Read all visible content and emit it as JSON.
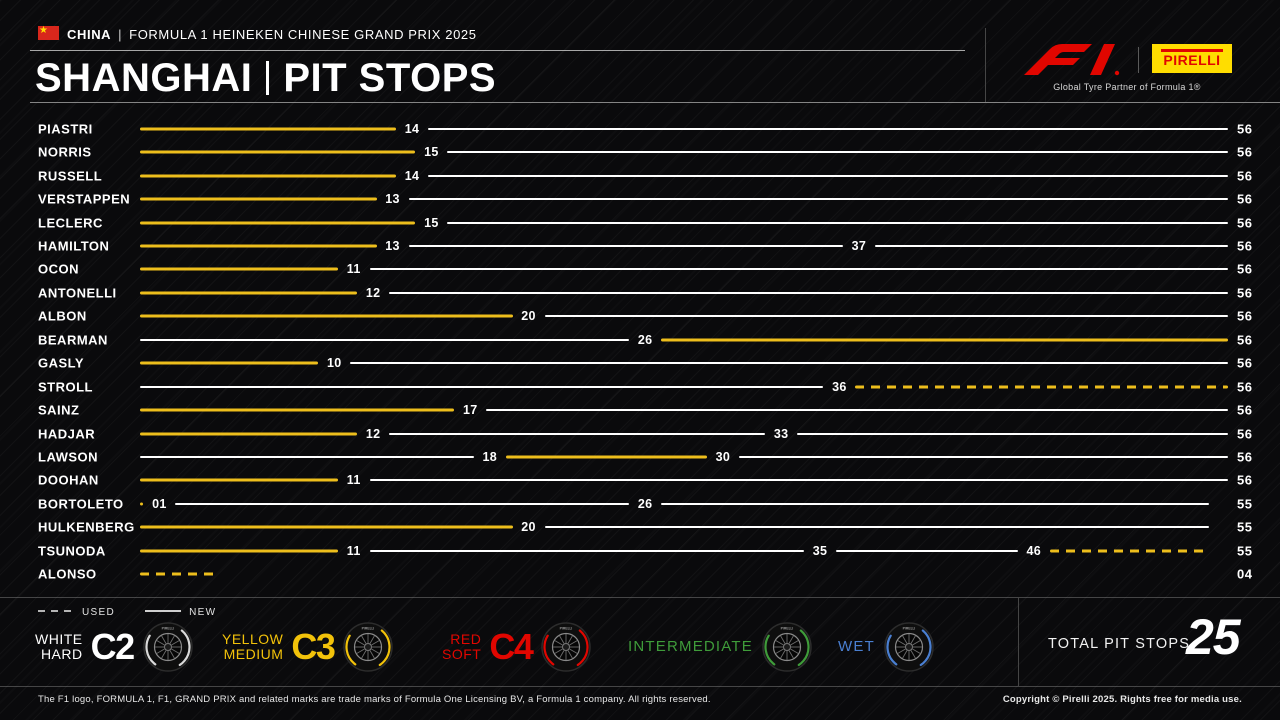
{
  "header": {
    "event_country": "CHINA",
    "event_sep": "|",
    "event_name": "FORMULA 1 HEINEKEN CHINESE GRAND PRIX 2025",
    "title_city": "SHANGHAI",
    "title_label": "PIT STOPS",
    "pirelli_wordmark": "PIRELLI",
    "partner_line": "Global Tyre Partner of Formula 1®"
  },
  "legend": {
    "used_label": "USED",
    "new_label": "NEW",
    "compounds": [
      {
        "name_lines": [
          "WHITE",
          "HARD"
        ],
        "code": "C2",
        "color": "#FFFFFF"
      },
      {
        "name_lines": [
          "YELLOW",
          "MEDIUM"
        ],
        "code": "C3",
        "color": "#F2C20A"
      },
      {
        "name_lines": [
          "RED",
          "SOFT"
        ],
        "code": "C4",
        "color": "#E10600"
      },
      {
        "name_lines": [
          "INTERMEDIATE"
        ],
        "code": "",
        "color": "#3F9C3A"
      },
      {
        "name_lines": [
          "WET"
        ],
        "code": "",
        "color": "#4A7FD1"
      }
    ],
    "total_label": "TOTAL PIT STOPS",
    "total_value": "25"
  },
  "chart_data": {
    "type": "timeline",
    "title": "SHANGHAI | PIT STOPS",
    "total_laps": 56,
    "compound_colors": {
      "medium": "#EDBE1C",
      "hard": "#FFFFFF"
    },
    "line_styles": {
      "used": "dashed",
      "new": "solid"
    },
    "drivers": [
      {
        "name": "PIASTRI",
        "end_label": "56",
        "stints": [
          {
            "from": 0,
            "to": 14,
            "compound": "medium",
            "used": false
          },
          {
            "from": 14,
            "to": 56,
            "compound": "hard",
            "used": false
          }
        ]
      },
      {
        "name": "NORRIS",
        "end_label": "56",
        "stints": [
          {
            "from": 0,
            "to": 15,
            "compound": "medium",
            "used": false
          },
          {
            "from": 15,
            "to": 56,
            "compound": "hard",
            "used": false
          }
        ]
      },
      {
        "name": "RUSSELL",
        "end_label": "56",
        "stints": [
          {
            "from": 0,
            "to": 14,
            "compound": "medium",
            "used": false
          },
          {
            "from": 14,
            "to": 56,
            "compound": "hard",
            "used": false
          }
        ]
      },
      {
        "name": "VERSTAPPEN",
        "end_label": "56",
        "stints": [
          {
            "from": 0,
            "to": 13,
            "compound": "medium",
            "used": false
          },
          {
            "from": 13,
            "to": 56,
            "compound": "hard",
            "used": false
          }
        ]
      },
      {
        "name": "LECLERC",
        "end_label": "56",
        "stints": [
          {
            "from": 0,
            "to": 15,
            "compound": "medium",
            "used": false
          },
          {
            "from": 15,
            "to": 56,
            "compound": "hard",
            "used": false
          }
        ]
      },
      {
        "name": "HAMILTON",
        "end_label": "56",
        "stints": [
          {
            "from": 0,
            "to": 13,
            "compound": "medium",
            "used": false
          },
          {
            "from": 13,
            "to": 37,
            "compound": "hard",
            "used": false
          },
          {
            "from": 37,
            "to": 56,
            "compound": "hard",
            "used": false
          }
        ]
      },
      {
        "name": "OCON",
        "end_label": "56",
        "stints": [
          {
            "from": 0,
            "to": 11,
            "compound": "medium",
            "used": false
          },
          {
            "from": 11,
            "to": 56,
            "compound": "hard",
            "used": false
          }
        ]
      },
      {
        "name": "ANTONELLI",
        "end_label": "56",
        "stints": [
          {
            "from": 0,
            "to": 12,
            "compound": "medium",
            "used": false
          },
          {
            "from": 12,
            "to": 56,
            "compound": "hard",
            "used": false
          }
        ]
      },
      {
        "name": "ALBON",
        "end_label": "56",
        "stints": [
          {
            "from": 0,
            "to": 20,
            "compound": "medium",
            "used": false
          },
          {
            "from": 20,
            "to": 56,
            "compound": "hard",
            "used": false
          }
        ]
      },
      {
        "name": "BEARMAN",
        "end_label": "56",
        "stints": [
          {
            "from": 0,
            "to": 26,
            "compound": "hard",
            "used": false
          },
          {
            "from": 26,
            "to": 56,
            "compound": "medium",
            "used": false
          }
        ]
      },
      {
        "name": "GASLY",
        "end_label": "56",
        "stints": [
          {
            "from": 0,
            "to": 10,
            "compound": "medium",
            "used": false
          },
          {
            "from": 10,
            "to": 56,
            "compound": "hard",
            "used": false
          }
        ]
      },
      {
        "name": "STROLL",
        "end_label": "56",
        "stints": [
          {
            "from": 0,
            "to": 36,
            "compound": "hard",
            "used": false
          },
          {
            "from": 36,
            "to": 56,
            "compound": "medium",
            "used": true
          }
        ]
      },
      {
        "name": "SAINZ",
        "end_label": "56",
        "stints": [
          {
            "from": 0,
            "to": 17,
            "compound": "medium",
            "used": false
          },
          {
            "from": 17,
            "to": 56,
            "compound": "hard",
            "used": false
          }
        ]
      },
      {
        "name": "HADJAR",
        "end_label": "56",
        "stints": [
          {
            "from": 0,
            "to": 12,
            "compound": "medium",
            "used": false
          },
          {
            "from": 12,
            "to": 33,
            "compound": "hard",
            "used": false
          },
          {
            "from": 33,
            "to": 56,
            "compound": "hard",
            "used": false
          }
        ]
      },
      {
        "name": "LAWSON",
        "end_label": "56",
        "stints": [
          {
            "from": 0,
            "to": 18,
            "compound": "hard",
            "used": false
          },
          {
            "from": 18,
            "to": 30,
            "compound": "medium",
            "used": false
          },
          {
            "from": 30,
            "to": 56,
            "compound": "hard",
            "used": false
          }
        ]
      },
      {
        "name": "DOOHAN",
        "end_label": "56",
        "stints": [
          {
            "from": 0,
            "to": 11,
            "compound": "medium",
            "used": false
          },
          {
            "from": 11,
            "to": 56,
            "compound": "hard",
            "used": false
          }
        ]
      },
      {
        "name": "BORTOLETO",
        "end_label": "55",
        "stints": [
          {
            "from": 0,
            "to": 1,
            "compound": "medium",
            "used": true
          },
          {
            "from": 1,
            "to": 26,
            "compound": "hard",
            "used": false
          },
          {
            "from": 26,
            "to": 55,
            "compound": "hard",
            "used": false
          }
        ]
      },
      {
        "name": "HULKENBERG",
        "end_label": "55",
        "stints": [
          {
            "from": 0,
            "to": 20,
            "compound": "medium",
            "used": false
          },
          {
            "from": 20,
            "to": 55,
            "compound": "hard",
            "used": false
          }
        ]
      },
      {
        "name": "TSUNODA",
        "end_label": "55",
        "stints": [
          {
            "from": 0,
            "to": 11,
            "compound": "medium",
            "used": false
          },
          {
            "from": 11,
            "to": 35,
            "compound": "hard",
            "used": false
          },
          {
            "from": 35,
            "to": 46,
            "compound": "hard",
            "used": false
          },
          {
            "from": 46,
            "to": 55,
            "compound": "medium",
            "used": true
          }
        ]
      },
      {
        "name": "ALONSO",
        "end_label": "04",
        "stints": [
          {
            "from": 0,
            "to": 4,
            "compound": "medium",
            "used": true
          }
        ]
      }
    ]
  },
  "footer": {
    "left_text": "The F1 logo, FORMULA 1, F1, GRAND PRIX and related marks are trade marks of Formula One Licensing BV, a Formula 1 company. All rights reserved.",
    "right_text": "Copyright © Pirelli 2025. Rights free for media use."
  }
}
